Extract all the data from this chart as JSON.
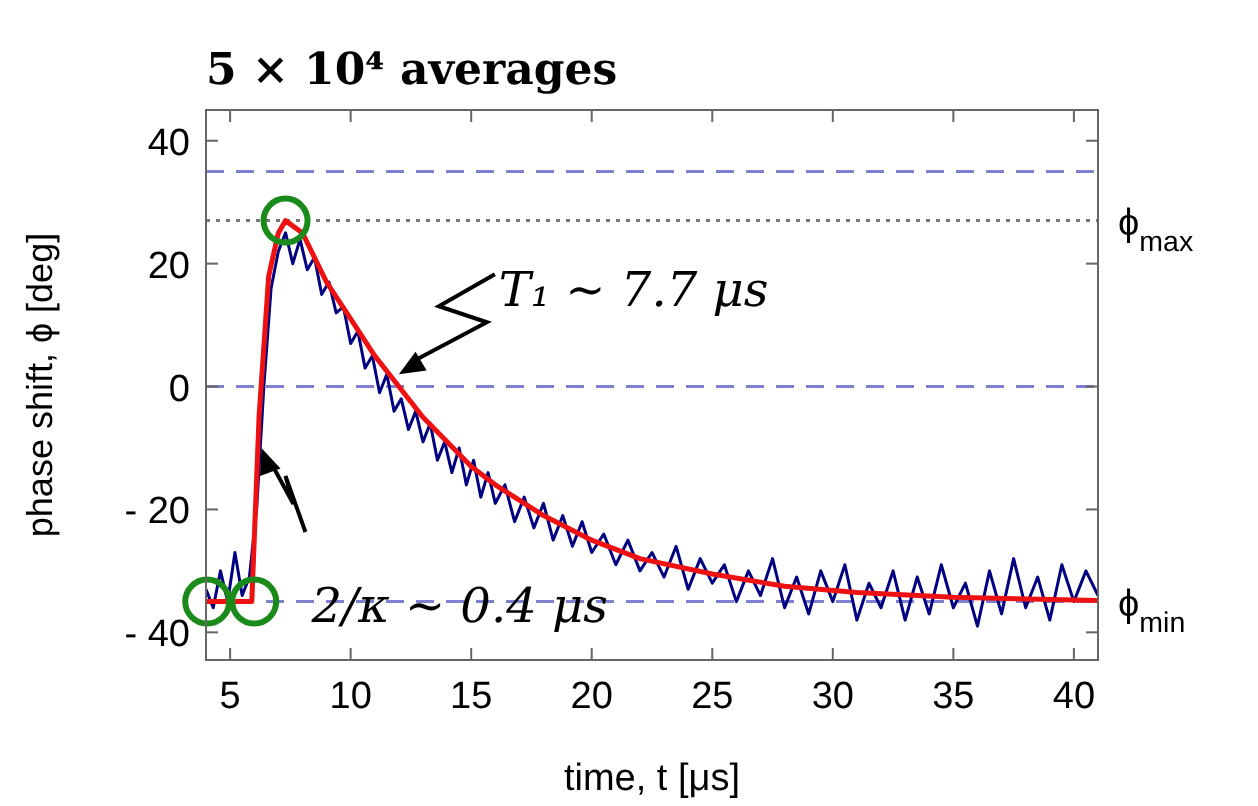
{
  "chart_data": {
    "type": "line",
    "title": "5 × 10⁴ averages",
    "xlabel": "time, t [μs]",
    "ylabel": "phase shift,  ϕ [deg]",
    "xlim": [
      4,
      41
    ],
    "ylim": [
      -44.5,
      45
    ],
    "xticks": [
      5,
      10,
      15,
      20,
      25,
      30,
      35,
      40
    ],
    "yticks": [
      {
        "value": -40,
        "label": "- 40"
      },
      {
        "value": -20,
        "label": "- 20"
      },
      0,
      20,
      40
    ],
    "grid": false,
    "line_style": "solid",
    "ref_lines": [
      {
        "axis": "y",
        "value": 35,
        "color": "#8080d0",
        "line_style": "dashed"
      },
      {
        "axis": "y",
        "value": 0,
        "color": "#8080d0",
        "line_style": "dashed"
      },
      {
        "axis": "y",
        "value": -35,
        "label": "ϕ$_{min}$",
        "color": "#8080d0",
        "line_style": "dashed"
      },
      {
        "axis": "y",
        "value": 27,
        "label": "ϕ$_{max}$",
        "color": "#777777",
        "line_style": "dotted"
      }
    ],
    "annotations": [
      {
        "text": "T₁ ∼ 7.7 μs",
        "x": 12,
        "y": 2
      },
      {
        "text": "2/κ ∼ 0.4 μs",
        "x": 6.3,
        "y": -10
      }
    ],
    "series": [
      {
        "color": "#000080",
        "x": [
          4.0,
          4.3,
          4.6,
          4.9,
          5.2,
          5.5,
          5.8,
          6.1,
          6.4,
          6.7,
          7.0,
          7.3,
          7.6,
          7.9,
          8.2,
          8.5,
          8.8,
          9.1,
          9.4,
          9.7,
          10.0,
          10.3,
          10.6,
          10.9,
          11.2,
          11.5,
          11.8,
          12.1,
          12.4,
          12.7,
          13.0,
          13.3,
          13.6,
          13.9,
          14.2,
          14.5,
          14.8,
          15.1,
          15.4,
          15.7,
          16.0,
          16.4,
          16.8,
          17.2,
          17.6,
          18.0,
          18.4,
          18.8,
          19.2,
          19.6,
          20.0,
          20.5,
          21.0,
          21.5,
          22.0,
          22.5,
          23.0,
          23.5,
          24.0,
          24.5,
          25.0,
          25.5,
          26.0,
          26.5,
          27.0,
          27.5,
          28.0,
          28.5,
          29.0,
          29.5,
          30.0,
          30.5,
          31.0,
          31.5,
          32.0,
          32.5,
          33.0,
          33.5,
          34.0,
          34.5,
          35.0,
          35.5,
          36.0,
          36.5,
          37.0,
          37.5,
          38.0,
          38.5,
          39.0,
          39.5,
          40.0,
          40.5,
          41.0
        ],
        "values": [
          -33,
          -36,
          -30,
          -35,
          -27,
          -34,
          -31,
          -20,
          0,
          16,
          22,
          25,
          20,
          24,
          19,
          21,
          15,
          17,
          12,
          13,
          7,
          9,
          3,
          5,
          -1,
          2,
          -4,
          -2,
          -7,
          -4,
          -9,
          -6,
          -12,
          -9,
          -14,
          -10,
          -16,
          -12,
          -18,
          -14,
          -19,
          -16,
          -22,
          -18,
          -23,
          -19,
          -25,
          -21,
          -26,
          -22,
          -27,
          -24,
          -29,
          -25,
          -30,
          -27,
          -31,
          -26,
          -33,
          -28,
          -32,
          -29,
          -35,
          -30,
          -34,
          -28,
          -36,
          -31,
          -37,
          -30,
          -35,
          -29,
          -38,
          -32,
          -36,
          -30,
          -38,
          -31,
          -37,
          -29,
          -36,
          -32,
          -39,
          -30,
          -37,
          -28,
          -36,
          -31,
          -38,
          -29,
          -35,
          -30,
          -34
        ]
      },
      {
        "color": "#ee1111",
        "x": [
          4,
          5.9,
          6.2,
          6.6,
          7.0,
          7.3,
          8,
          9,
          10,
          11,
          12,
          13,
          14,
          15,
          16,
          18,
          20,
          22,
          25,
          28,
          31,
          35,
          41
        ],
        "values": [
          -35,
          -35,
          -5,
          18,
          25,
          27,
          25,
          17,
          11,
          5,
          0,
          -5,
          -9,
          -13,
          -16,
          -21,
          -25,
          -28,
          -30.5,
          -32.5,
          -33.5,
          -34.3,
          -34.8
        ]
      },
      {
        "type": "scatter",
        "color": "#1a8a1a",
        "marker": "circle",
        "x": [
          4.05,
          6.0,
          7.3
        ],
        "values": [
          -35,
          -35,
          27
        ]
      }
    ]
  }
}
